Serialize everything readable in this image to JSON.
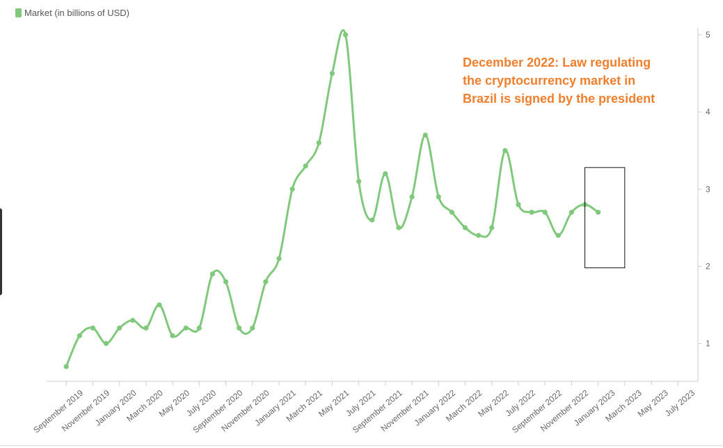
{
  "colors": {
    "series": "#80c97c",
    "annotation": "#f07f2d",
    "axis": "#cccccc",
    "tick_text": "#666666"
  },
  "legend": {
    "label": "Market (in billions of USD)"
  },
  "annotation": {
    "text": "December 2022: Law regulating the cryptocurrency market in Brazil is signed by the president"
  },
  "chart_data": {
    "type": "line",
    "title": "",
    "xlabel": "",
    "ylabel": "",
    "y_axis_position": "right",
    "legend_position": "top-left",
    "grid": false,
    "ylim": [
      0.5,
      5.0
    ],
    "yticks": [
      1,
      2,
      3,
      4,
      5
    ],
    "x_tick_labels": [
      "September 2019",
      "November 2019",
      "January 2020",
      "March 2020",
      "May 2020",
      "July 2020",
      "September 2020",
      "November 2020",
      "January 2021",
      "March 2021",
      "May 2021",
      "July 2021",
      "September 2021",
      "November 2021",
      "January 2022",
      "March 2022",
      "May 2022",
      "July 2022",
      "September 2022",
      "November 2022",
      "January 2023",
      "March 2023",
      "May 2023",
      "July 2023"
    ],
    "x": [
      "2019-09",
      "2019-10",
      "2019-11",
      "2019-12",
      "2020-01",
      "2020-02",
      "2020-03",
      "2020-04",
      "2020-05",
      "2020-06",
      "2020-07",
      "2020-08",
      "2020-09",
      "2020-10",
      "2020-11",
      "2020-12",
      "2021-01",
      "2021-02",
      "2021-03",
      "2021-04",
      "2021-05",
      "2021-06",
      "2021-07",
      "2021-08",
      "2021-09",
      "2021-10",
      "2021-11",
      "2021-12",
      "2022-01",
      "2022-02",
      "2022-03",
      "2022-04",
      "2022-05",
      "2022-06",
      "2022-07",
      "2022-08",
      "2022-09",
      "2022-10",
      "2022-11",
      "2022-12",
      "2023-01"
    ],
    "series": [
      {
        "name": "Market (in billions of USD)",
        "values": [
          0.7,
          1.1,
          1.2,
          1.0,
          1.2,
          1.3,
          1.2,
          1.5,
          1.1,
          1.2,
          1.2,
          1.9,
          1.8,
          1.2,
          1.2,
          1.8,
          2.1,
          3.0,
          3.3,
          3.6,
          4.5,
          5.0,
          3.1,
          2.6,
          3.2,
          2.5,
          2.9,
          3.7,
          2.9,
          2.7,
          2.5,
          2.4,
          2.5,
          3.5,
          2.8,
          2.7,
          2.7,
          2.4,
          2.7,
          2.8,
          2.7
        ]
      }
    ],
    "highlight": {
      "x_start": "2022-12",
      "x_end": "2023-03",
      "y_low": 1.98,
      "y_high": 3.28
    }
  }
}
